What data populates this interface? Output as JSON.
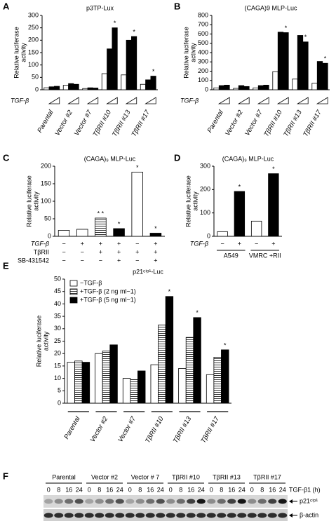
{
  "chart_data": [
    {
      "type": "bar",
      "panel": "A",
      "title": "p3TP-Lux",
      "ylabel": [
        "Relative luciferase",
        "activity"
      ],
      "categories": [
        "Parental",
        "Vector #2",
        "Vector #7",
        "TβRII #10",
        "TβRII #13",
        "TβRII #17"
      ],
      "series": [
        {
          "color": "#ffffff",
          "values": [
            8,
            18,
            5,
            65,
            60,
            22
          ]
        },
        {
          "color": "#000000",
          "values": [
            12,
            25,
            8,
            165,
            200,
            40
          ]
        },
        {
          "color": "#000000",
          "values": [
            14,
            22,
            7,
            250,
            215,
            55
          ],
          "marks": [
            null,
            null,
            null,
            "*",
            "*",
            "*"
          ]
        }
      ],
      "dose_label": "TGF-β",
      "ylim": [
        0,
        300
      ],
      "yticks": [
        0,
        50,
        100,
        150,
        200,
        250,
        300
      ]
    },
    {
      "type": "bar",
      "panel": "B",
      "title": "(CAGA)9 MLP-Luc",
      "ylabel": [
        "Relative luciferase",
        "activity"
      ],
      "categories": [
        "Parental",
        "Vector #2",
        "Vector #7",
        "TβRII #10",
        "TβRII #13",
        "TβRII #17"
      ],
      "series": [
        {
          "color": "#ffffff",
          "values": [
            20,
            15,
            20,
            195,
            115,
            70
          ]
        },
        {
          "color": "#000000",
          "values": [
            45,
            45,
            45,
            620,
            585,
            305
          ]
        },
        {
          "color": "#000000",
          "values": [
            50,
            35,
            50,
            615,
            515,
            285
          ],
          "marks": [
            null,
            null,
            null,
            "*",
            "*",
            "*"
          ]
        }
      ],
      "dose_label": "TGF-β",
      "ylim": [
        0,
        800
      ],
      "yticks": [
        0,
        100,
        200,
        300,
        400,
        500,
        600,
        700,
        800
      ]
    },
    {
      "type": "bar",
      "panel": "C",
      "title": "(CAGA)₉ MLP-Luc",
      "ylabel": [
        "Relative luciferase",
        "activity"
      ],
      "categories": [
        null,
        null,
        null,
        null,
        null,
        null
      ],
      "values": [
        17,
        20,
        52,
        22,
        183,
        9
      ],
      "colors": [
        "#ffffff",
        "#ffffff",
        "hatched",
        "#000000",
        "#ffffff",
        "#000000"
      ],
      "marks": [
        null,
        null,
        "* *",
        "*",
        "*",
        "*"
      ],
      "rows": [
        {
          "name": "TGF-β",
          "values": [
            "−",
            "+",
            "+",
            "+",
            "−",
            "+"
          ]
        },
        {
          "name": "TβRII",
          "values": [
            "−",
            "−",
            "+",
            "+",
            "+",
            "+"
          ]
        },
        {
          "name": "SB-431542",
          "values": [
            "−",
            "−",
            "−",
            "+",
            "−",
            "+"
          ]
        }
      ],
      "ylim": [
        0,
        200
      ],
      "yticks": [
        0,
        50,
        100,
        150,
        200
      ]
    },
    {
      "type": "bar",
      "panel": "D",
      "title": "(CAGA)₉ MLP-Luc",
      "ylabel": [
        "Relative luciferase",
        "activity"
      ],
      "categories": [
        null,
        null,
        null,
        null
      ],
      "values": [
        20,
        192,
        65,
        268
      ],
      "colors": [
        "#ffffff",
        "#000000",
        "#ffffff",
        "#000000"
      ],
      "marks": [
        null,
        "*",
        null,
        "*"
      ],
      "rows": [
        {
          "name": "TGF-β",
          "values": [
            "−",
            "+",
            "−",
            "+"
          ]
        }
      ],
      "groups": [
        "A549",
        "VMRC +RII"
      ],
      "ylim": [
        0,
        300
      ],
      "yticks": [
        0,
        100,
        200,
        300
      ]
    },
    {
      "type": "bar",
      "panel": "E",
      "title": "p21ᶜⁱᵖ¹-Luc",
      "ylabel": [
        "Relative luciferase",
        "activity"
      ],
      "categories": [
        "Parental",
        "Vector #2",
        "Vector #7",
        "TβRII #10",
        "TβRII #13",
        "TβRII #17"
      ],
      "series": [
        {
          "name": "−TGF-β",
          "color": "#ffffff",
          "values": [
            16.5,
            20,
            10,
            15.5,
            14,
            11.5
          ]
        },
        {
          "name": "+TGF-β (2 ng ml−1)",
          "color": "hatched",
          "values": [
            17,
            21,
            9.5,
            31.5,
            26.5,
            18.5
          ]
        },
        {
          "name": "+TGF-β (5 ng ml−1)",
          "color": "#000000",
          "values": [
            16.5,
            23.5,
            13,
            43,
            34.5,
            21.5
          ],
          "marks": [
            null,
            null,
            null,
            "*",
            "*",
            "*"
          ]
        }
      ],
      "ylim": [
        0,
        50
      ],
      "yticks": [
        0,
        5,
        10,
        15,
        20,
        25,
        30,
        35,
        40,
        45,
        50
      ]
    }
  ],
  "blot": {
    "panel": "F",
    "groups": [
      "Parental",
      "Vector #2",
      "Vector # 7",
      "TβRII #10",
      "TβRII #13",
      "TβRII #17"
    ],
    "times": [
      "0",
      "8",
      "16",
      "24"
    ],
    "time_label": "TGF-β1 (h)",
    "bands": [
      "p21ᶜⁱᵖ¹",
      "β-actin"
    ]
  }
}
